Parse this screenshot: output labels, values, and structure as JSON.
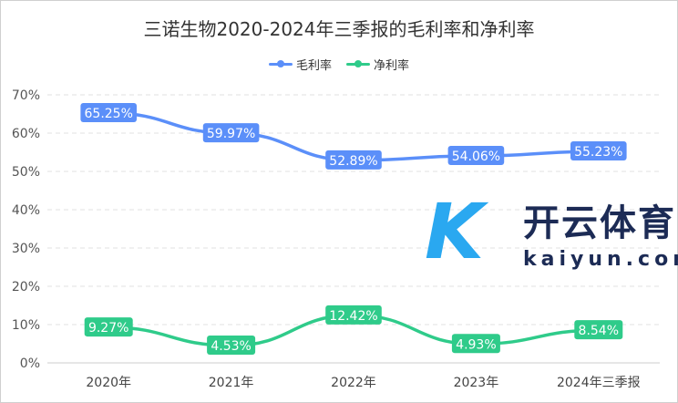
{
  "chart_data": {
    "type": "line",
    "title": "三诺生物2020-2024年三季报的毛利率和净利率",
    "categories": [
      "2020年",
      "2021年",
      "2022年",
      "2023年",
      "2024年三季报"
    ],
    "series": [
      {
        "name": "毛利率",
        "values": [
          65.25,
          59.97,
          52.89,
          54.06,
          55.23
        ],
        "labels": [
          "65.25%",
          "59.97%",
          "52.89%",
          "54.06%",
          "55.23%"
        ],
        "color": "#5b8ff9"
      },
      {
        "name": "净利率",
        "values": [
          9.27,
          4.53,
          12.42,
          4.93,
          8.54
        ],
        "labels": [
          "9.27%",
          "4.53%",
          "12.42%",
          "4.93%",
          "8.54%"
        ],
        "color": "#2fcb8a"
      }
    ],
    "y_ticks": [
      "0%",
      "10%",
      "20%",
      "30%",
      "40%",
      "50%",
      "60%",
      "70%"
    ],
    "ylim": [
      0,
      70
    ],
    "grid": true,
    "legend_position": "top-center"
  },
  "watermark": {
    "logo": "K",
    "name": "开云体育",
    "site": "kaiyun.com"
  }
}
